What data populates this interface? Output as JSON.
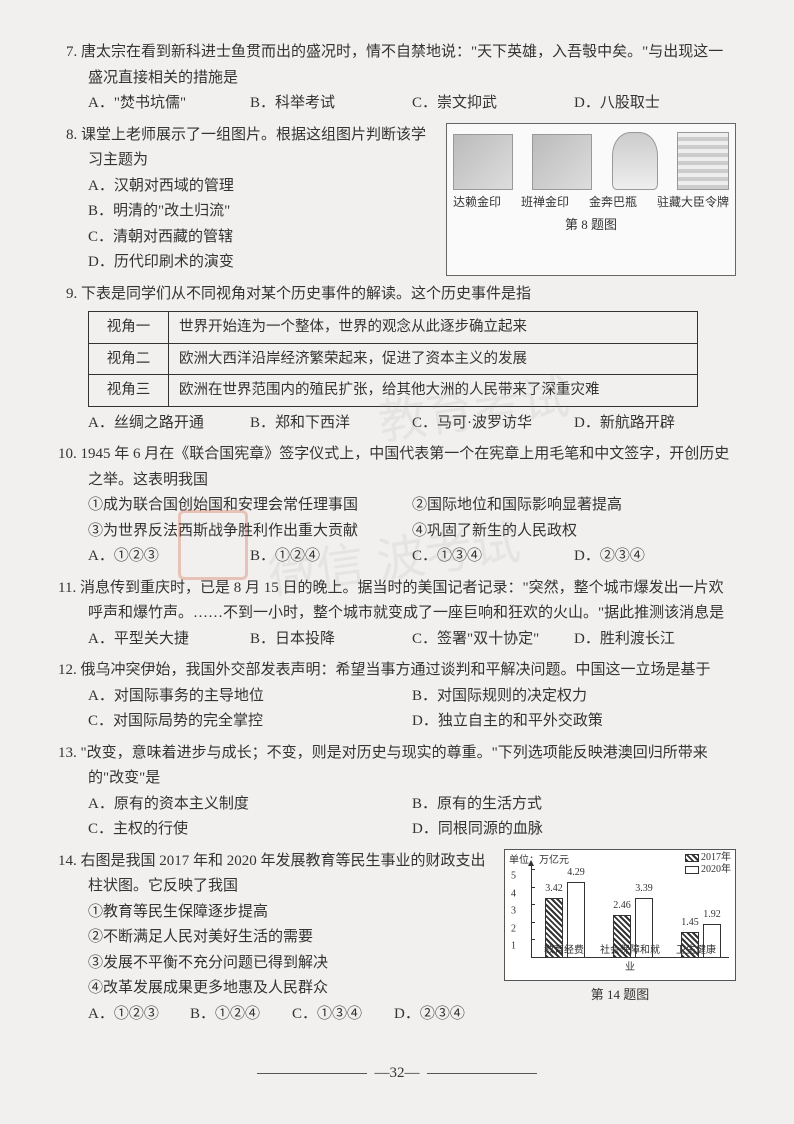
{
  "watermarks": {
    "wm1": "教育考试",
    "wm2": "微信 波考试"
  },
  "q7": {
    "num": "7.",
    "stem": "唐太宗在看到新科进士鱼贯而出的盛况时，情不自禁地说：\"天下英雄，入吾彀中矣。\"与出现这一盛况直接相关的措施是",
    "A": "A．\"焚书坑儒\"",
    "B": "B．科举考试",
    "C": "C．崇文抑武",
    "D": "D．八股取士"
  },
  "q8": {
    "num": "8.",
    "stem": "课堂上老师展示了一组图片。根据这组图片判断该学习主题为",
    "A": "A．汉朝对西域的管理",
    "B": "B．明清的\"改土归流\"",
    "C": "C．清朝对西藏的管辖",
    "D": "D．历代印刷术的演变",
    "fig_labels": [
      "达赖金印",
      "班禅金印",
      "金奔巴瓶",
      "驻藏大臣令牌"
    ],
    "fig_caption": "第 8 题图"
  },
  "q9": {
    "num": "9.",
    "stem": "下表是同学们从不同视角对某个历史事件的解读。这个历史事件是指",
    "rows": [
      [
        "视角一",
        "世界开始连为一个整体，世界的观念从此逐步确立起来"
      ],
      [
        "视角二",
        "欧洲大西洋沿岸经济繁荣起来，促进了资本主义的发展"
      ],
      [
        "视角三",
        "欧洲在世界范围内的殖民扩张，给其他大洲的人民带来了深重灾难"
      ]
    ],
    "A": "A．丝绸之路开通",
    "B": "B．郑和下西洋",
    "C": "C．马可·波罗访华",
    "D": "D．新航路开辟"
  },
  "q10": {
    "num": "10.",
    "stem": "1945 年 6 月在《联合国宪章》签字仪式上，中国代表第一个在宪章上用毛笔和中文签字，开创历史之举。这表明我国",
    "s1": "①成为联合国创始国和安理会常任理事国",
    "s2": "②国际地位和国际影响显著提高",
    "s3": "③为世界反法西斯战争胜利作出重大贡献",
    "s4": "④巩固了新生的人民政权",
    "A": "A．①②③",
    "B": "B．①②④",
    "C": "C．①③④",
    "D": "D．②③④"
  },
  "q11": {
    "num": "11.",
    "stem": "消息传到重庆时，已是 8 月 15 日的晚上。据当时的美国记者记录：\"突然，整个城市爆发出一片欢呼声和爆竹声。……不到一小时，整个城市就变成了一座巨响和狂欢的火山。\"据此推测该消息是",
    "A": "A．平型关大捷",
    "B": "B．日本投降",
    "C": "C．签署\"双十协定\"",
    "D": "D．胜利渡长江"
  },
  "q12": {
    "num": "12.",
    "stem": "俄乌冲突伊始，我国外交部发表声明：希望当事方通过谈判和平解决问题。中国这一立场是基于",
    "A": "A．对国际事务的主导地位",
    "B": "B．对国际规则的决定权力",
    "C": "C．对国际局势的完全掌控",
    "D": "D．独立自主的和平外交政策"
  },
  "q13": {
    "num": "13.",
    "stem": "\"改变，意味着进步与成长；不变，则是对历史与现实的尊重。\"下列选项能反映港澳回归所带来的\"改变\"是",
    "A": "A．原有的资本主义制度",
    "B": "B．原有的生活方式",
    "C": "C．主权的行使",
    "D": "D．同根同源的血脉"
  },
  "q14": {
    "num": "14.",
    "stem": "右图是我国 2017 年和 2020 年发展教育等民生事业的财政支出柱状图。它反映了我国",
    "s1": "①教育等民生保障逐步提高",
    "s2": "②不断满足人民对美好生活的需要",
    "s3": "③发展不平衡不充分问题已得到解决",
    "s4": "④改革发展成果更多地惠及人民群众",
    "A": "A．①②③",
    "B": "B．①②④",
    "C": "C．①③④",
    "D": "D．②③④",
    "chart": {
      "unit": "单位：万亿元",
      "legend": [
        "2017年",
        "2020年"
      ],
      "ymax": 5,
      "yticks": [
        1,
        2,
        3,
        4,
        5
      ],
      "categories": [
        "教育经费",
        "社会保障和就业",
        "卫生健康"
      ],
      "series2017": [
        3.42,
        2.46,
        1.45
      ],
      "series2020": [
        4.29,
        3.39,
        1.92
      ],
      "bar_colors": {
        "hatch": "#333333",
        "plain": "#ffffff"
      },
      "caption": "第 14 题图"
    }
  },
  "page_number": "32"
}
